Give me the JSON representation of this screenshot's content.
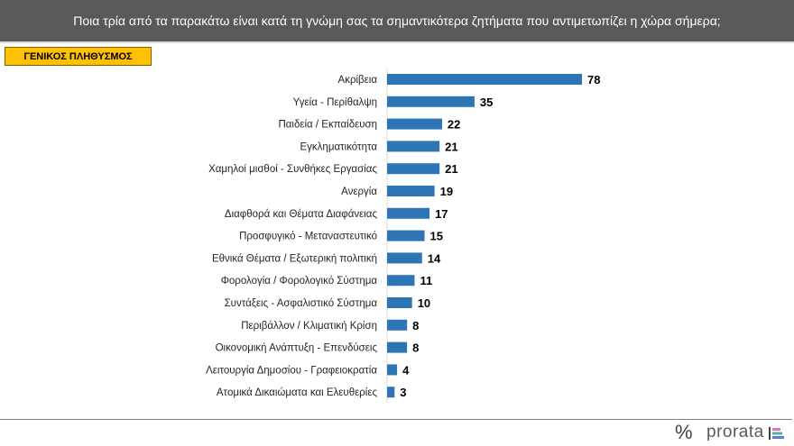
{
  "header": {
    "title": "Ποια τρία από τα παρακάτω είναι κατά τη γνώμη σας τα σημαντικότερα ζητήματα που αντιμετωπίζει η χώρα σήμερα;"
  },
  "badge": {
    "label": "ΓΕΝΙΚΟΣ ΠΛΗΘΥΣΜΟΣ"
  },
  "footer": {
    "percent_symbol": "%",
    "brand": "prorata"
  },
  "colors": {
    "bar": "#2e75b6",
    "header_bg": "#595959",
    "badge_bg": "#ffc000"
  },
  "chart_data": {
    "type": "bar",
    "orientation": "horizontal",
    "categories": [
      "Ακρίβεια",
      "Υγεία - Περίθαλψη",
      "Παιδεία / Εκπαίδευση",
      "Εγκληματικότητα",
      "Χαμηλοί μισθοί - Συνθήκες Εργασίας",
      "Ανεργία",
      "Διαφθορά και Θέματα Διαφάνειας",
      "Προσφυγικό - Μεταναστευτικό",
      "Εθνικά Θέματα / Εξωτερική πολιτική",
      "Φορολογία / Φορολογικό Σύστημα",
      "Συντάξεις - Ασφαλιστικό Σύστημα",
      "Περιβάλλον / Κλιματική Κρίση",
      "Οικονομική Ανάπτυξη - Επενδύσεις",
      "Λειτουργία Δημοσίου - Γραφειοκρατία",
      "Ατομικά Δικαιώματα και Ελευθερίες"
    ],
    "values": [
      78,
      35,
      22,
      21,
      21,
      19,
      17,
      15,
      14,
      11,
      10,
      8,
      8,
      4,
      3
    ],
    "data_labels": true,
    "grid": false
  }
}
